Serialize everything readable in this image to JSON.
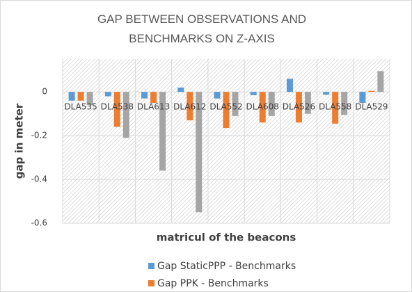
{
  "chart_data": {
    "type": "bar",
    "title": "GAP BETWEEN OBSERVATIONS AND BENCHMARKS ON Z-AXIS",
    "x_label": "matricul of the beacons",
    "y_label": "gap in meter",
    "categories": [
      "DLA535",
      "DLA538",
      "DLA613",
      "DLA612",
      "DLA552",
      "DLA608",
      "DLA526",
      "DLA558",
      "DLA529"
    ],
    "series": [
      {
        "name": "Gap StaticPPP - Benchmarks",
        "color": "#5b9bd5",
        "values": [
          -0.04,
          -0.02,
          -0.03,
          0.02,
          -0.03,
          -0.015,
          0.06,
          -0.013,
          -0.05
        ]
      },
      {
        "name": "Gap PPK - Benchmarks",
        "color": "#ed7d31",
        "values": [
          -0.04,
          -0.16,
          -0.05,
          -0.13,
          -0.165,
          -0.14,
          -0.14,
          -0.145,
          0.005
        ]
      },
      {
        "color": "#a5a5a5",
        "values": [
          -0.06,
          -0.21,
          -0.36,
          -0.55,
          -0.11,
          -0.11,
          -0.1,
          -0.105,
          0.095
        ]
      }
    ],
    "ylim": [
      -0.6,
      0.15
    ],
    "yticks": [
      -0.6,
      -0.4,
      -0.2,
      0
    ],
    "grid": true
  }
}
